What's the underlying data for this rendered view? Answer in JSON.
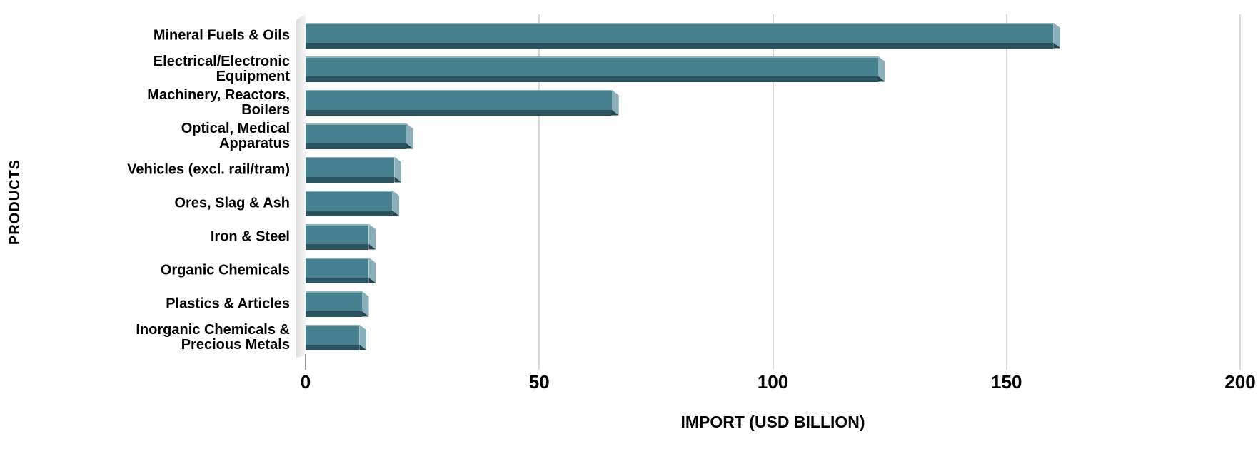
{
  "chart_data": {
    "type": "bar",
    "orientation": "horizontal",
    "xlabel": "IMPORT (USD BILLION)",
    "ylabel": "PRODUCTS",
    "xlim": [
      0,
      200
    ],
    "xticks": [
      0,
      50,
      100,
      150,
      200
    ],
    "grid": true,
    "legend": false,
    "categories": [
      "Mineral Fuels & Oils",
      "Electrical/Electronic Equipment",
      "Machinery, Reactors, Boilers",
      "Optical, Medical Apparatus",
      "Vehicles (excl. rail/tram)",
      "Ores, Slag & Ash",
      "Iron & Steel",
      "Organic Chemicals",
      "Plastics & Articles",
      "Inorganic Chemicals & Precious Metals"
    ],
    "values": [
      160,
      122.5,
      65.5,
      21.5,
      19,
      18.5,
      13.5,
      13.5,
      12,
      11.5
    ]
  },
  "colors": {
    "bar_face": "#47808F",
    "bar_top_edge": "#8FB2BB",
    "bar_bottom_shade": "#2C5360",
    "bar_end_bevel": "#8BAFB8",
    "bar_end_shadow": "#24444E",
    "wall": "#E4E4E4",
    "gridline": "#D9D9D9",
    "text": "#000000",
    "background": "#FFFFFF"
  }
}
